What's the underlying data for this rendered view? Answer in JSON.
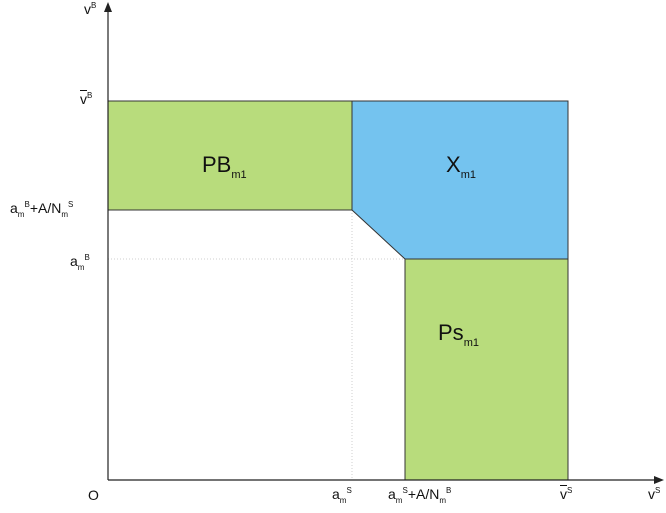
{
  "colors": {
    "green": "#b8dc7c",
    "blue": "#74c3ef",
    "outline": "#333333",
    "axis": "#222222",
    "dotted": "#bbbbbb"
  },
  "axes": {
    "y": {
      "var": "v",
      "sup": "B"
    },
    "x": {
      "var": "v",
      "sup": "S"
    },
    "origin": "O"
  },
  "y_ticks": {
    "vbar_b": {
      "main": "v",
      "sup": "B"
    },
    "ambAN": {
      "a": "a",
      "sub": "m",
      "sup": "B",
      "mid": "+A/N",
      "sub2": "m",
      "sup2": "S"
    },
    "amb": {
      "a": "a",
      "sub": "m",
      "sup": "B"
    }
  },
  "x_ticks": {
    "ams": {
      "a": "a",
      "sub": "m",
      "sup": "S"
    },
    "amsAN": {
      "a": "a",
      "sub": "m",
      "sup": "S",
      "mid": "+A/N",
      "sub2": "m",
      "sup2": "B"
    },
    "vbar_s": {
      "main": "v",
      "sup": "S"
    }
  },
  "regions": {
    "pb": {
      "main": "PB",
      "sub": "m1"
    },
    "x": {
      "main": "X",
      "sub": "m1"
    },
    "ps": {
      "main": "Ps",
      "sub": "m1"
    }
  }
}
